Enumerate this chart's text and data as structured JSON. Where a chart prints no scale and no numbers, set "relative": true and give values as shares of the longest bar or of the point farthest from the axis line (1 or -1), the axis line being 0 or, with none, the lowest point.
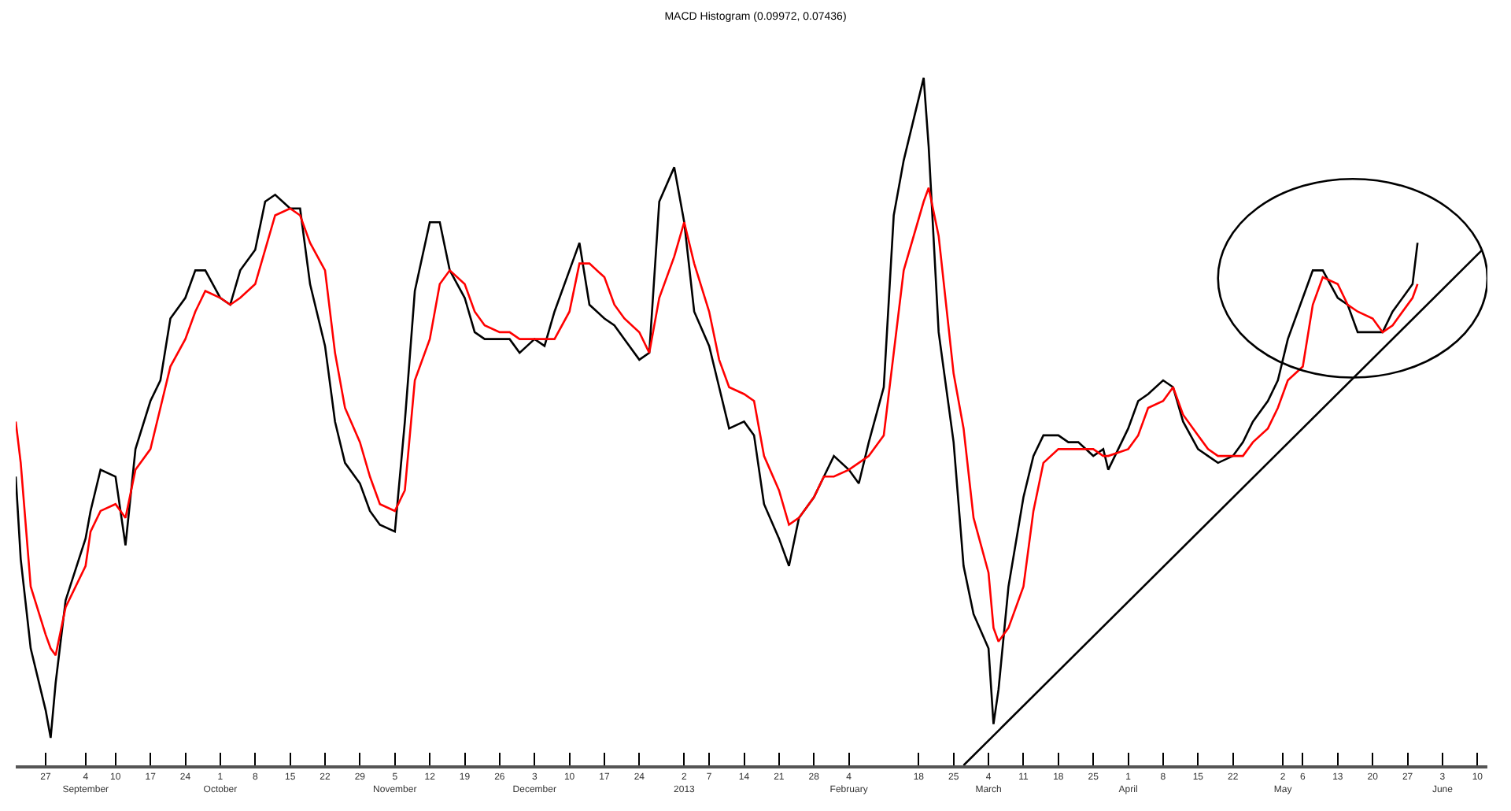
{
  "chart_data": {
    "type": "line",
    "title": "MACD Histogram (0.09972, 0.07436)",
    "relative": true,
    "tick_labels": "x",
    "marker": "none",
    "line_style": "solid",
    "xlim": [
      "2012-08-21",
      "2013-06-12"
    ],
    "xticks": [
      {
        "value": "2012-08-27",
        "label": "27"
      },
      {
        "value": "2012-09-04",
        "label": "4\nSeptember"
      },
      {
        "value": "2012-09-10",
        "label": "10"
      },
      {
        "value": "2012-09-17",
        "label": "17"
      },
      {
        "value": "2012-09-24",
        "label": "24"
      },
      {
        "value": "2012-10-01",
        "label": "1\nOctober"
      },
      {
        "value": "2012-10-08",
        "label": "8"
      },
      {
        "value": "2012-10-15",
        "label": "15"
      },
      {
        "value": "2012-10-22",
        "label": "22"
      },
      {
        "value": "2012-10-29",
        "label": "29"
      },
      {
        "value": "2012-11-05",
        "label": "5\nNovember"
      },
      {
        "value": "2012-11-12",
        "label": "12"
      },
      {
        "value": "2012-11-19",
        "label": "19"
      },
      {
        "value": "2012-11-26",
        "label": "26"
      },
      {
        "value": "2012-12-03",
        "label": "3\nDecember"
      },
      {
        "value": "2012-12-10",
        "label": "10"
      },
      {
        "value": "2012-12-17",
        "label": "17"
      },
      {
        "value": "2012-12-24",
        "label": "24"
      },
      {
        "value": "2013-01-02",
        "label": "2\n2013"
      },
      {
        "value": "2013-01-07",
        "label": "7"
      },
      {
        "value": "2013-01-14",
        "label": "14"
      },
      {
        "value": "2013-01-21",
        "label": "21"
      },
      {
        "value": "2013-01-28",
        "label": "28"
      },
      {
        "value": "2013-02-04",
        "label": "4\nFebruary"
      },
      {
        "value": "2013-02-18",
        "label": "18"
      },
      {
        "value": "2013-02-25",
        "label": "25"
      },
      {
        "value": "2013-03-04",
        "label": "4\nMarch"
      },
      {
        "value": "2013-03-11",
        "label": "11"
      },
      {
        "value": "2013-03-18",
        "label": "18"
      },
      {
        "value": "2013-03-25",
        "label": "25"
      },
      {
        "value": "2013-04-01",
        "label": "1\nApril"
      },
      {
        "value": "2013-04-08",
        "label": "8"
      },
      {
        "value": "2013-04-15",
        "label": "15"
      },
      {
        "value": "2013-04-22",
        "label": "22"
      },
      {
        "value": "2013-05-02",
        "label": "2\nMay"
      },
      {
        "value": "2013-05-06",
        "label": "6"
      },
      {
        "value": "2013-05-13",
        "label": "13"
      },
      {
        "value": "2013-05-20",
        "label": "20"
      },
      {
        "value": "2013-05-27",
        "label": "27"
      },
      {
        "value": "2013-06-03",
        "label": "3\nJune"
      },
      {
        "value": "2013-06-10",
        "label": "10"
      }
    ],
    "x": [
      "2012-08-21",
      "2012-08-22",
      "2012-08-24",
      "2012-08-27",
      "2012-08-28",
      "2012-08-29",
      "2012-08-31",
      "2012-09-04",
      "2012-09-05",
      "2012-09-07",
      "2012-09-10",
      "2012-09-12",
      "2012-09-14",
      "2012-09-17",
      "2012-09-19",
      "2012-09-21",
      "2012-09-24",
      "2012-09-26",
      "2012-09-28",
      "2012-10-01",
      "2012-10-03",
      "2012-10-05",
      "2012-10-08",
      "2012-10-10",
      "2012-10-12",
      "2012-10-15",
      "2012-10-17",
      "2012-10-19",
      "2012-10-22",
      "2012-10-24",
      "2012-10-26",
      "2012-10-29",
      "2012-10-31",
      "2012-11-02",
      "2012-11-05",
      "2012-11-07",
      "2012-11-09",
      "2012-11-12",
      "2012-11-14",
      "2012-11-16",
      "2012-11-19",
      "2012-11-21",
      "2012-11-23",
      "2012-11-26",
      "2012-11-28",
      "2012-11-30",
      "2012-12-03",
      "2012-12-05",
      "2012-12-07",
      "2012-12-10",
      "2012-12-12",
      "2012-12-14",
      "2012-12-17",
      "2012-12-19",
      "2012-12-21",
      "2012-12-24",
      "2012-12-26",
      "2012-12-28",
      "2012-12-31",
      "2013-01-02",
      "2013-01-04",
      "2013-01-07",
      "2013-01-09",
      "2013-01-11",
      "2013-01-14",
      "2013-01-16",
      "2013-01-18",
      "2013-01-21",
      "2013-01-23",
      "2013-01-25",
      "2013-01-28",
      "2013-01-30",
      "2013-02-01",
      "2013-02-04",
      "2013-02-06",
      "2013-02-08",
      "2013-02-11",
      "2013-02-13",
      "2013-02-15",
      "2013-02-19",
      "2013-02-20",
      "2013-02-22",
      "2013-02-25",
      "2013-02-27",
      "2013-03-01",
      "2013-03-04",
      "2013-03-05",
      "2013-03-06",
      "2013-03-08",
      "2013-03-11",
      "2013-03-13",
      "2013-03-15",
      "2013-03-18",
      "2013-03-20",
      "2013-03-22",
      "2013-03-25",
      "2013-03-27",
      "2013-03-28",
      "2013-04-01",
      "2013-04-03",
      "2013-04-05",
      "2013-04-08",
      "2013-04-10",
      "2013-04-12",
      "2013-04-15",
      "2013-04-17",
      "2013-04-19",
      "2013-04-22",
      "2013-04-24",
      "2013-04-26",
      "2013-04-29",
      "2013-05-01",
      "2013-05-03",
      "2013-05-06",
      "2013-05-08",
      "2013-05-10",
      "2013-05-13",
      "2013-05-15",
      "2013-05-17",
      "2013-05-20",
      "2013-05-22",
      "2013-05-24",
      "2013-05-28",
      "2013-05-29"
    ],
    "series": [
      {
        "color": "#000000",
        "values": [
          0.42,
          0.3,
          0.17,
          0.08,
          0.04,
          0.12,
          0.24,
          0.33,
          0.37,
          0.43,
          0.42,
          0.32,
          0.46,
          0.53,
          0.56,
          0.65,
          0.68,
          0.72,
          0.72,
          0.68,
          0.67,
          0.72,
          0.75,
          0.82,
          0.83,
          0.81,
          0.81,
          0.7,
          0.61,
          0.5,
          0.44,
          0.41,
          0.37,
          0.35,
          0.34,
          0.5,
          0.69,
          0.79,
          0.79,
          0.72,
          0.68,
          0.63,
          0.62,
          0.62,
          0.62,
          0.6,
          0.62,
          0.61,
          0.66,
          0.72,
          0.76,
          0.67,
          0.65,
          0.64,
          0.62,
          0.59,
          0.6,
          0.82,
          0.87,
          0.79,
          0.66,
          0.61,
          0.55,
          0.49,
          0.5,
          0.48,
          0.38,
          0.33,
          0.29,
          0.36,
          0.39,
          0.42,
          0.45,
          0.43,
          0.41,
          0.47,
          0.55,
          0.8,
          0.88,
          1.0,
          0.9,
          0.63,
          0.47,
          0.29,
          0.22,
          0.17,
          0.06,
          0.11,
          0.26,
          0.39,
          0.45,
          0.48,
          0.48,
          0.47,
          0.47,
          0.45,
          0.46,
          0.43,
          0.49,
          0.53,
          0.54,
          0.56,
          0.55,
          0.5,
          0.46,
          0.45,
          0.44,
          0.45,
          0.47,
          0.5,
          0.53,
          0.56,
          0.62,
          0.68,
          0.72,
          0.72,
          0.68,
          0.67,
          0.63,
          0.63,
          0.63,
          0.66,
          0.7,
          0.76
        ]
      },
      {
        "color": "#ff0000",
        "values": [
          0.5,
          0.44,
          0.26,
          0.19,
          0.17,
          0.16,
          0.23,
          0.29,
          0.34,
          0.37,
          0.38,
          0.36,
          0.43,
          0.46,
          0.52,
          0.58,
          0.62,
          0.66,
          0.69,
          0.68,
          0.67,
          0.68,
          0.7,
          0.75,
          0.8,
          0.81,
          0.8,
          0.76,
          0.72,
          0.6,
          0.52,
          0.47,
          0.42,
          0.38,
          0.37,
          0.4,
          0.56,
          0.62,
          0.7,
          0.72,
          0.7,
          0.66,
          0.64,
          0.63,
          0.63,
          0.62,
          0.62,
          0.62,
          0.62,
          0.66,
          0.73,
          0.73,
          0.71,
          0.67,
          0.65,
          0.63,
          0.6,
          0.68,
          0.74,
          0.79,
          0.73,
          0.66,
          0.59,
          0.55,
          0.54,
          0.53,
          0.45,
          0.4,
          0.35,
          0.36,
          0.39,
          0.42,
          0.42,
          0.43,
          0.44,
          0.45,
          0.48,
          0.6,
          0.72,
          0.82,
          0.84,
          0.77,
          0.57,
          0.49,
          0.36,
          0.28,
          0.2,
          0.18,
          0.2,
          0.26,
          0.37,
          0.44,
          0.46,
          0.46,
          0.46,
          0.46,
          0.45,
          0.45,
          0.46,
          0.48,
          0.52,
          0.53,
          0.55,
          0.51,
          0.48,
          0.46,
          0.45,
          0.45,
          0.45,
          0.47,
          0.49,
          0.52,
          0.56,
          0.58,
          0.67,
          0.71,
          0.7,
          0.67,
          0.66,
          0.65,
          0.63,
          0.64,
          0.68,
          0.7
        ]
      },
      {
        "type": "line",
        "color": "#000000",
        "x": [
          "2013-02-27",
          "2013-06-11"
        ],
        "values": [
          0,
          0.75
        ]
      }
    ]
  }
}
